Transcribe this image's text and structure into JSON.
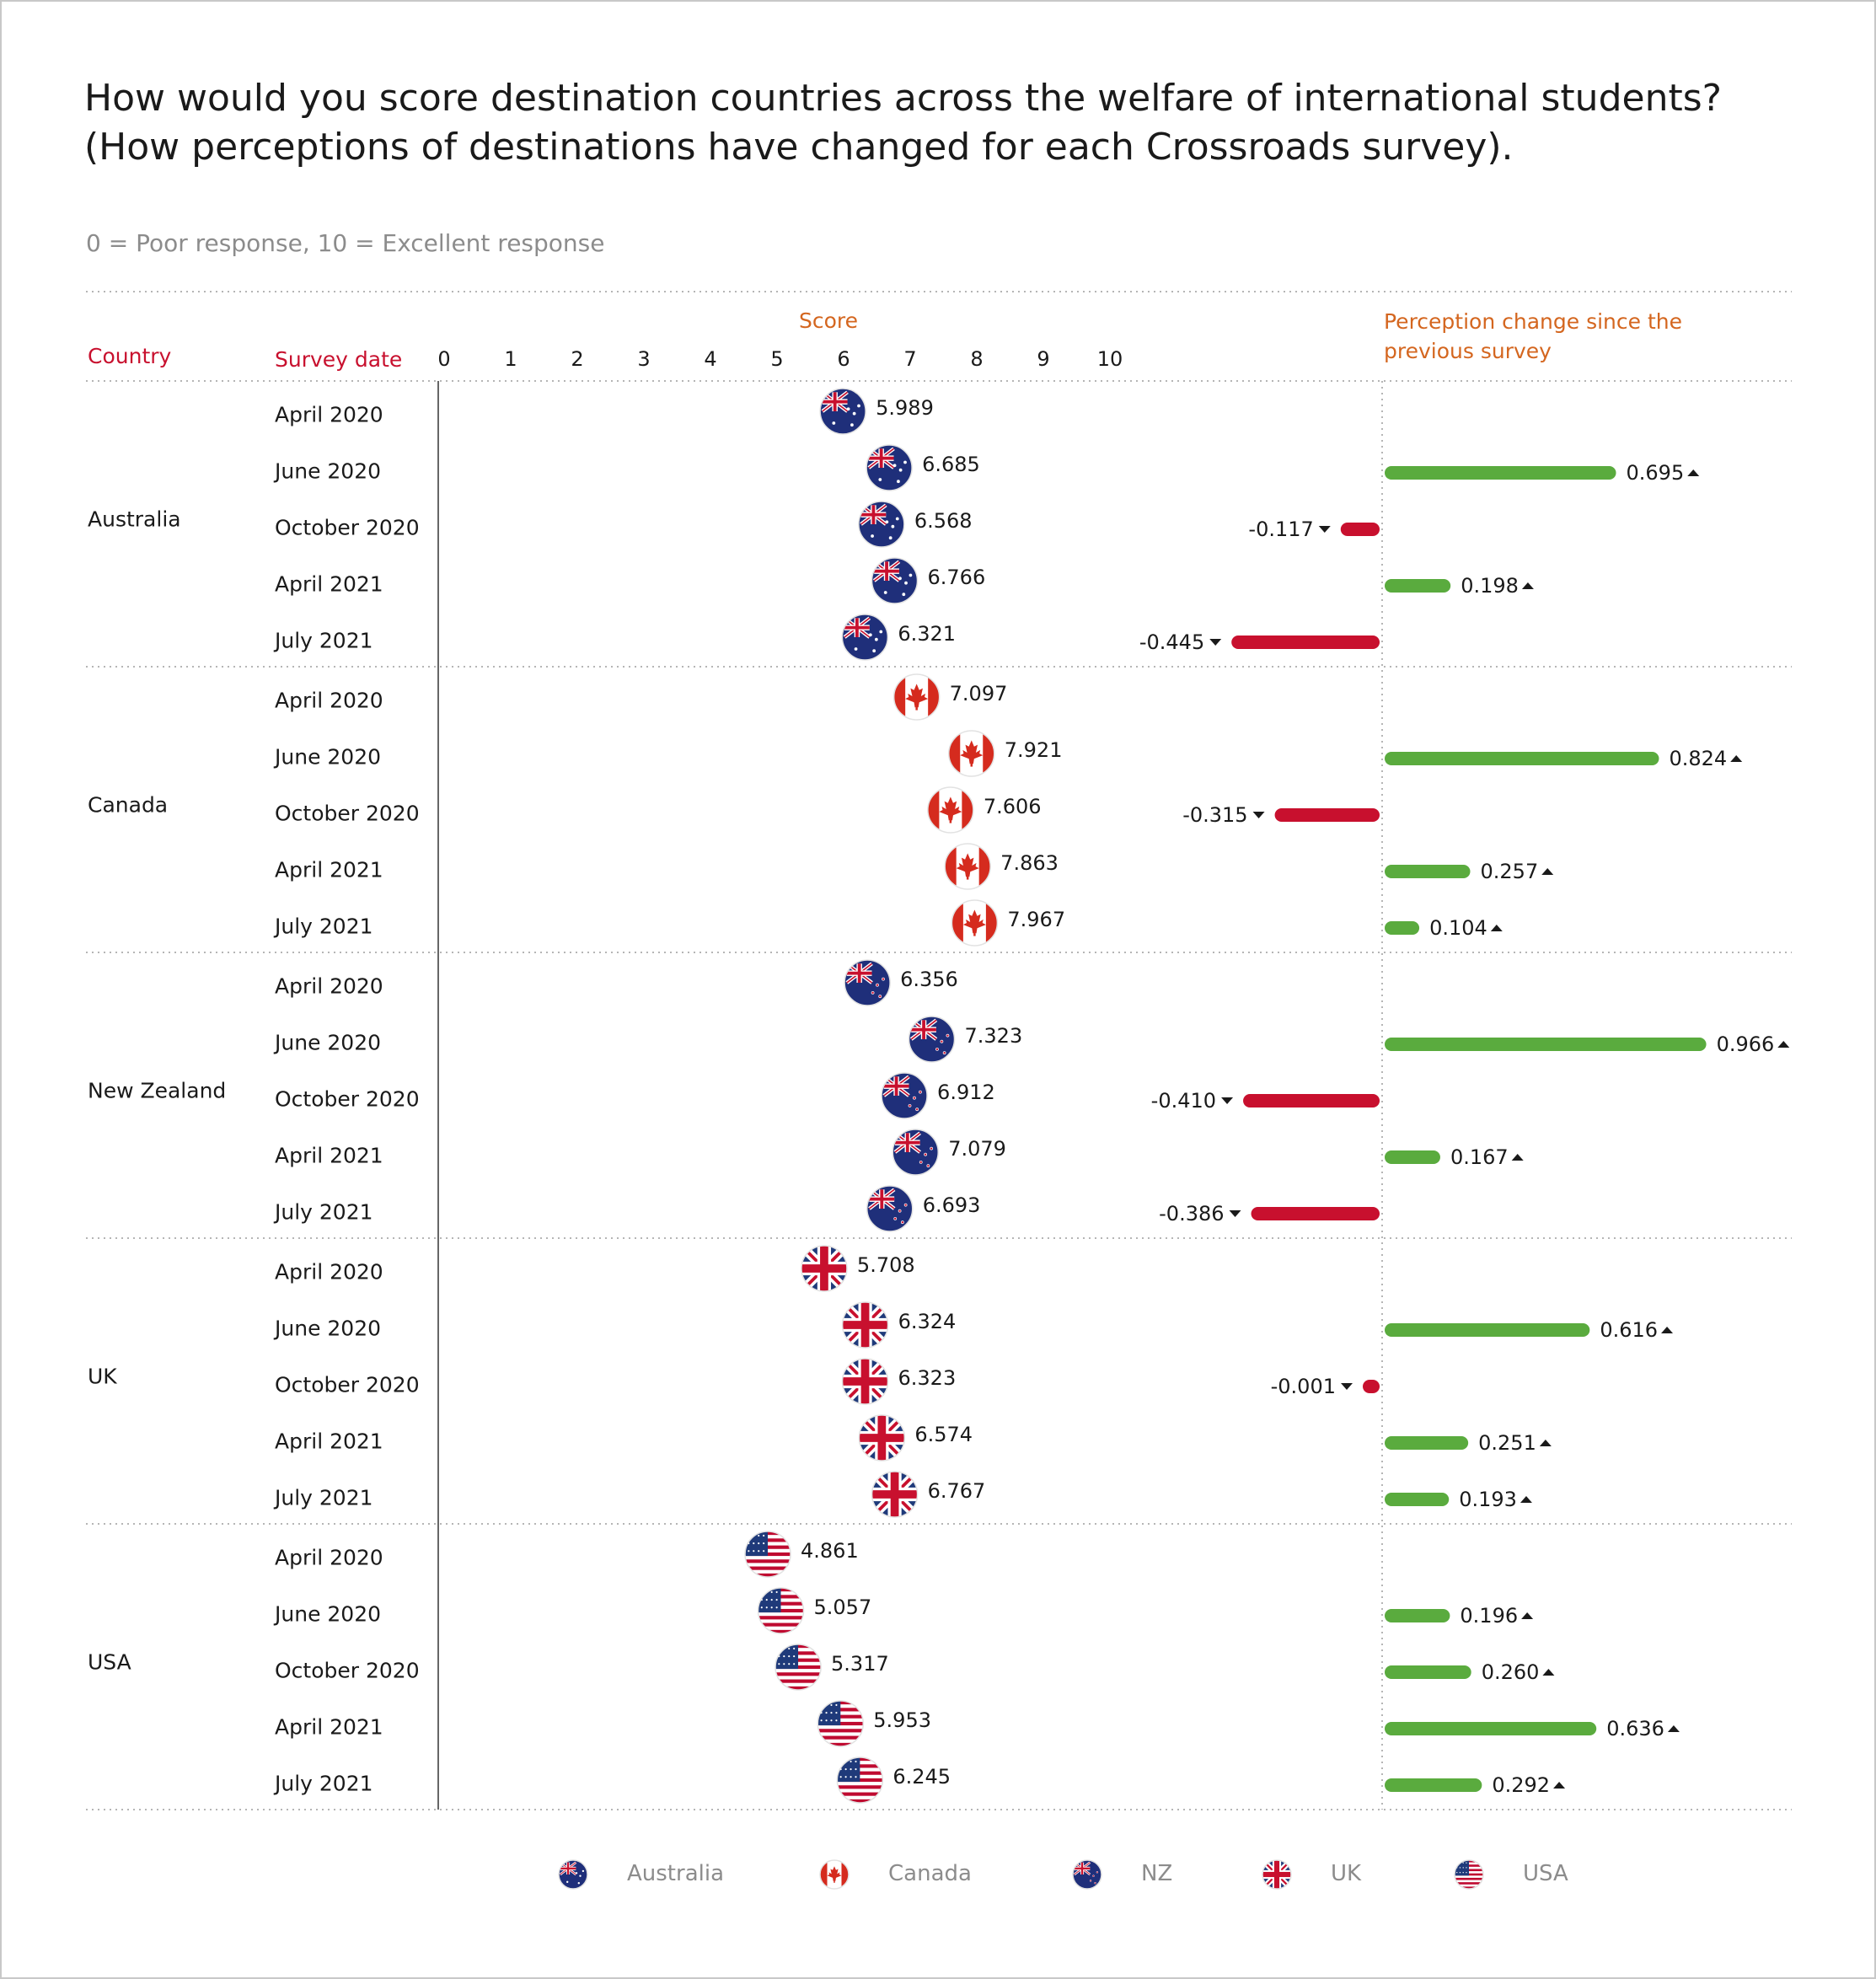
{
  "title_line1": "How would you score destination countries across the welfare of international students?",
  "title_line2": "(How perceptions of destinations have changed for each Crossroads survey).",
  "subtitle": "0 = Poor response, 10 = Excellent response",
  "headers": {
    "country": "Country",
    "survey_date": "Survey date",
    "score": "Score",
    "change_line1": "Perception change since the",
    "change_line2": "previous survey"
  },
  "colors": {
    "positive": "#5aab3e",
    "negative": "#c8102e",
    "divider": "#b5b5b5",
    "axis": "#666666"
  },
  "chart_data": {
    "type": "scatter",
    "xlim": [
      0,
      10
    ],
    "x_ticks": [
      "0",
      "1",
      "2",
      "3",
      "4",
      "5",
      "6",
      "7",
      "8",
      "9",
      "10"
    ],
    "dates": [
      "April 2020",
      "June 2020",
      "October 2020",
      "April 2021",
      "July 2021"
    ],
    "groups": [
      {
        "country": "Australia",
        "flag": "australia-flag",
        "legend": "Australia",
        "rows": [
          {
            "date": "April 2020",
            "score": 5.989,
            "score_label": "5.989",
            "change": null,
            "change_label": ""
          },
          {
            "date": "June 2020",
            "score": 6.685,
            "score_label": "6.685",
            "change": 0.695,
            "change_label": "0.695"
          },
          {
            "date": "October 2020",
            "score": 6.568,
            "score_label": "6.568",
            "change": -0.117,
            "change_label": "-0.117"
          },
          {
            "date": "April 2021",
            "score": 6.766,
            "score_label": "6.766",
            "change": 0.198,
            "change_label": "0.198"
          },
          {
            "date": "July 2021",
            "score": 6.321,
            "score_label": "6.321",
            "change": -0.445,
            "change_label": "-0.445"
          }
        ]
      },
      {
        "country": "Canada",
        "flag": "canada-flag",
        "legend": "Canada",
        "rows": [
          {
            "date": "April 2020",
            "score": 7.097,
            "score_label": "7.097",
            "change": null,
            "change_label": ""
          },
          {
            "date": "June 2020",
            "score": 7.921,
            "score_label": "7.921",
            "change": 0.824,
            "change_label": "0.824"
          },
          {
            "date": "October 2020",
            "score": 7.606,
            "score_label": "7.606",
            "change": -0.315,
            "change_label": "-0.315"
          },
          {
            "date": "April 2021",
            "score": 7.863,
            "score_label": "7.863",
            "change": 0.257,
            "change_label": "0.257"
          },
          {
            "date": "July 2021",
            "score": 7.967,
            "score_label": "7.967",
            "change": 0.104,
            "change_label": "0.104"
          }
        ]
      },
      {
        "country": "New Zealand",
        "flag": "new-zealand-flag",
        "legend": "NZ",
        "rows": [
          {
            "date": "April 2020",
            "score": 6.356,
            "score_label": "6.356",
            "change": null,
            "change_label": ""
          },
          {
            "date": "June 2020",
            "score": 7.323,
            "score_label": "7.323",
            "change": 0.966,
            "change_label": "0.966"
          },
          {
            "date": "October 2020",
            "score": 6.912,
            "score_label": "6.912",
            "change": -0.41,
            "change_label": "-0.410"
          },
          {
            "date": "April 2021",
            "score": 7.079,
            "score_label": "7.079",
            "change": 0.167,
            "change_label": "0.167"
          },
          {
            "date": "July 2021",
            "score": 6.693,
            "score_label": "6.693",
            "change": -0.386,
            "change_label": "-0.386"
          }
        ]
      },
      {
        "country": "UK",
        "flag": "uk-flag",
        "legend": "UK",
        "rows": [
          {
            "date": "April 2020",
            "score": 5.708,
            "score_label": "5.708",
            "change": null,
            "change_label": ""
          },
          {
            "date": "June 2020",
            "score": 6.324,
            "score_label": "6.324",
            "change": 0.616,
            "change_label": "0.616"
          },
          {
            "date": "October 2020",
            "score": 6.323,
            "score_label": "6.323",
            "change": -0.001,
            "change_label": "-0.001"
          },
          {
            "date": "April 2021",
            "score": 6.574,
            "score_label": "6.574",
            "change": 0.251,
            "change_label": "0.251"
          },
          {
            "date": "July 2021",
            "score": 6.767,
            "score_label": "6.767",
            "change": 0.193,
            "change_label": "0.193"
          }
        ]
      },
      {
        "country": "USA",
        "flag": "usa-flag",
        "legend": "USA",
        "rows": [
          {
            "date": "April 2020",
            "score": 4.861,
            "score_label": "4.861",
            "change": null,
            "change_label": ""
          },
          {
            "date": "June 2020",
            "score": 5.057,
            "score_label": "5.057",
            "change": 0.196,
            "change_label": "0.196"
          },
          {
            "date": "October 2020",
            "score": 5.317,
            "score_label": "5.317",
            "change": 0.26,
            "change_label": "0.260"
          },
          {
            "date": "April 2021",
            "score": 5.953,
            "score_label": "5.953",
            "change": 0.636,
            "change_label": "0.636"
          },
          {
            "date": "July 2021",
            "score": 6.245,
            "score_label": "6.245",
            "change": 0.292,
            "change_label": "0.292"
          }
        ]
      }
    ]
  }
}
